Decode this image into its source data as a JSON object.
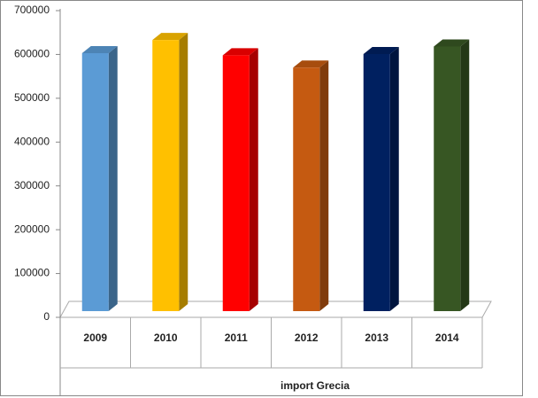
{
  "chart_data": {
    "type": "bar3d",
    "x_label": "import Grecia",
    "categories": [
      "2009",
      "2010",
      "2011",
      "2012",
      "2013",
      "2014"
    ],
    "values": [
      605000,
      635000,
      600000,
      572000,
      603000,
      620000
    ],
    "colors": [
      "#5b9bd5",
      "#ffc000",
      "#ff0000",
      "#c55a11",
      "#002060",
      "#375623"
    ],
    "ylim": [
      0,
      700000
    ],
    "yticks": [
      0,
      100000,
      200000,
      300000,
      400000,
      500000,
      600000,
      700000
    ]
  }
}
